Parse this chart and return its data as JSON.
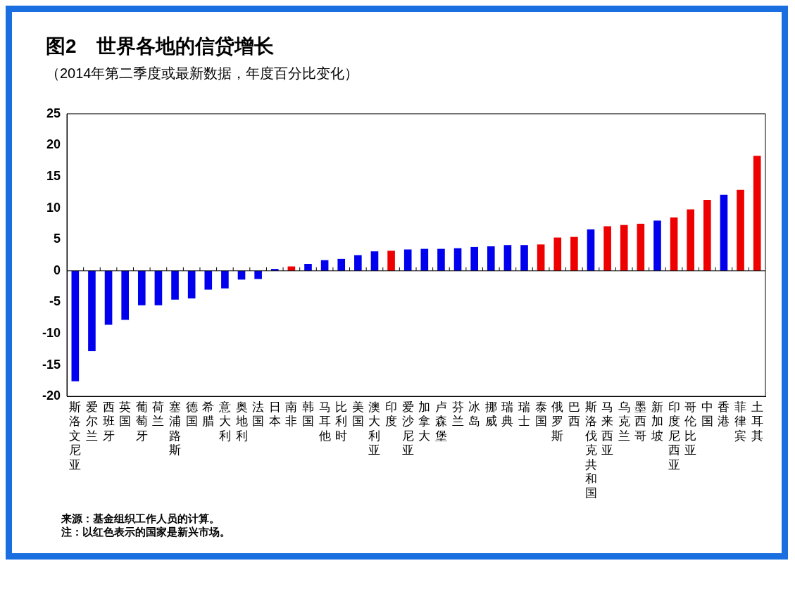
{
  "chart_data": {
    "type": "bar",
    "title": "图2　世界各地的信贷增长",
    "subtitle": "（2014年第二季度或最新数据，年度百分比变化）",
    "categories": [
      "斯洛文尼亚",
      "爱尔兰",
      "西班牙",
      "英国",
      "葡萄牙",
      "荷兰",
      "塞浦路斯",
      "德国",
      "希腊",
      "意大利",
      "奥地利",
      "法国",
      "日本",
      "南非",
      "韩国",
      "马耳他",
      "比利时",
      "美国",
      "澳大利亚",
      "印度",
      "爱沙尼亚",
      "加拿大",
      "卢森堡",
      "芬兰",
      "冰岛",
      "挪威",
      "瑞典",
      "瑞士",
      "泰国",
      "俄罗斯",
      "巴西",
      "斯洛伐克共和国",
      "马来西亚",
      "乌克兰",
      "墨西哥",
      "新加坡",
      "印度尼西亚",
      "哥伦比亚",
      "中国",
      "香港",
      "菲律宾",
      "土耳其"
    ],
    "values": [
      -17.6,
      -12.8,
      -8.6,
      -7.8,
      -5.5,
      -5.5,
      -4.6,
      -4.4,
      -3.0,
      -2.8,
      -1.4,
      -1.3,
      0.3,
      0.7,
      1.1,
      1.7,
      1.9,
      2.5,
      3.1,
      3.2,
      3.4,
      3.5,
      3.5,
      3.6,
      3.8,
      3.9,
      4.1,
      4.1,
      4.2,
      5.3,
      5.4,
      6.6,
      7.1,
      7.3,
      7.5,
      8.0,
      8.5,
      9.8,
      11.3,
      12.1,
      12.9,
      18.3
    ],
    "colors": [
      "#0000ee",
      "#0000ee",
      "#0000ee",
      "#0000ee",
      "#0000ee",
      "#0000ee",
      "#0000ee",
      "#0000ee",
      "#0000ee",
      "#0000ee",
      "#0000ee",
      "#0000ee",
      "#0000ee",
      "#ee0000",
      "#0000ee",
      "#0000ee",
      "#0000ee",
      "#0000ee",
      "#0000ee",
      "#ee0000",
      "#0000ee",
      "#0000ee",
      "#0000ee",
      "#0000ee",
      "#0000ee",
      "#0000ee",
      "#0000ee",
      "#0000ee",
      "#ee0000",
      "#ee0000",
      "#ee0000",
      "#0000ee",
      "#ee0000",
      "#ee0000",
      "#ee0000",
      "#0000ee",
      "#ee0000",
      "#ee0000",
      "#ee0000",
      "#0000ee",
      "#ee0000",
      "#ee0000"
    ],
    "ylim": [
      -20,
      25
    ],
    "yticks": [
      -20,
      -15,
      -10,
      -5,
      0,
      5,
      10,
      15,
      20,
      25
    ],
    "legend": false,
    "annotations": [
      "来源：基金组织工作人员的计算。",
      "注：以红色表示的国家是新兴市场。"
    ]
  }
}
